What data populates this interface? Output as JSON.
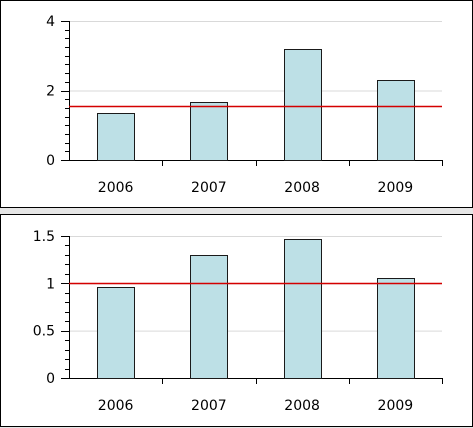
{
  "colors": {
    "bar_fill": "#bde0e6",
    "bar_stroke": "#1a1a1a",
    "reference_line": "#d40000",
    "grid": "#d9d9d9",
    "panel_bg": "#ffffff",
    "page_bg": "#e6e6e6"
  },
  "chart_data": [
    {
      "type": "bar",
      "categories": [
        "2006",
        "2007",
        "2008",
        "2009"
      ],
      "values": [
        1.35,
        1.68,
        3.18,
        2.3
      ],
      "reference_line": 1.55,
      "ylim": [
        0,
        4
      ],
      "yticks": [
        0,
        2,
        4
      ],
      "ytick_labels": [
        "0",
        "2",
        "4"
      ],
      "grid": true,
      "title": "",
      "xlabel": "",
      "ylabel": ""
    },
    {
      "type": "bar",
      "categories": [
        "2006",
        "2007",
        "2008",
        "2009"
      ],
      "values": [
        0.96,
        1.3,
        1.47,
        1.06
      ],
      "reference_line": 1.0,
      "ylim": [
        0,
        1.5
      ],
      "yticks": [
        0,
        0.5,
        1,
        1.5
      ],
      "ytick_labels": [
        "0",
        "0.5",
        "1",
        "1.5"
      ],
      "grid": true,
      "title": "",
      "xlabel": "",
      "ylabel": ""
    }
  ]
}
